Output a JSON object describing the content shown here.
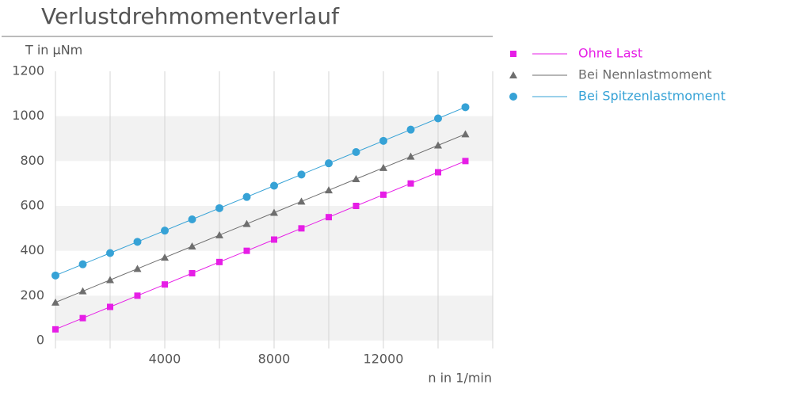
{
  "chart_data": {
    "type": "line",
    "title": "Verlustdrehmomentverlauf",
    "y_label": "T in µNm",
    "x_label": "n in 1/min",
    "x": [
      0,
      1000,
      2000,
      3000,
      4000,
      5000,
      6000,
      7000,
      8000,
      9000,
      10000,
      11000,
      12000,
      13000,
      14000,
      15000
    ],
    "series": [
      {
        "name": "Ohne Last",
        "color": "#e61ee6",
        "marker": "square",
        "values": [
          50,
          100,
          150,
          200,
          250,
          300,
          350,
          400,
          450,
          500,
          550,
          600,
          650,
          700,
          750,
          800
        ]
      },
      {
        "name": "Bei Nennlastmoment",
        "color": "#6e6e6e",
        "marker": "triangle",
        "values": [
          170,
          220,
          270,
          320,
          370,
          420,
          470,
          520,
          570,
          620,
          670,
          720,
          770,
          820,
          870,
          920
        ]
      },
      {
        "name": "Bei Spitzenlastmoment",
        "color": "#36a2d6",
        "marker": "circle",
        "values": [
          290,
          340,
          390,
          440,
          490,
          540,
          590,
          640,
          690,
          740,
          790,
          840,
          890,
          940,
          990,
          1040
        ]
      }
    ],
    "xlim": [
      0,
      16000
    ],
    "xticks": [
      4000,
      8000,
      12000
    ],
    "xgrid": [
      2000,
      4000,
      6000,
      8000,
      10000,
      12000,
      14000,
      16000
    ],
    "ylim": [
      0,
      1200
    ],
    "yticks": [
      0,
      200,
      400,
      600,
      800,
      1000,
      1200
    ],
    "bands": true,
    "legend": "right"
  }
}
